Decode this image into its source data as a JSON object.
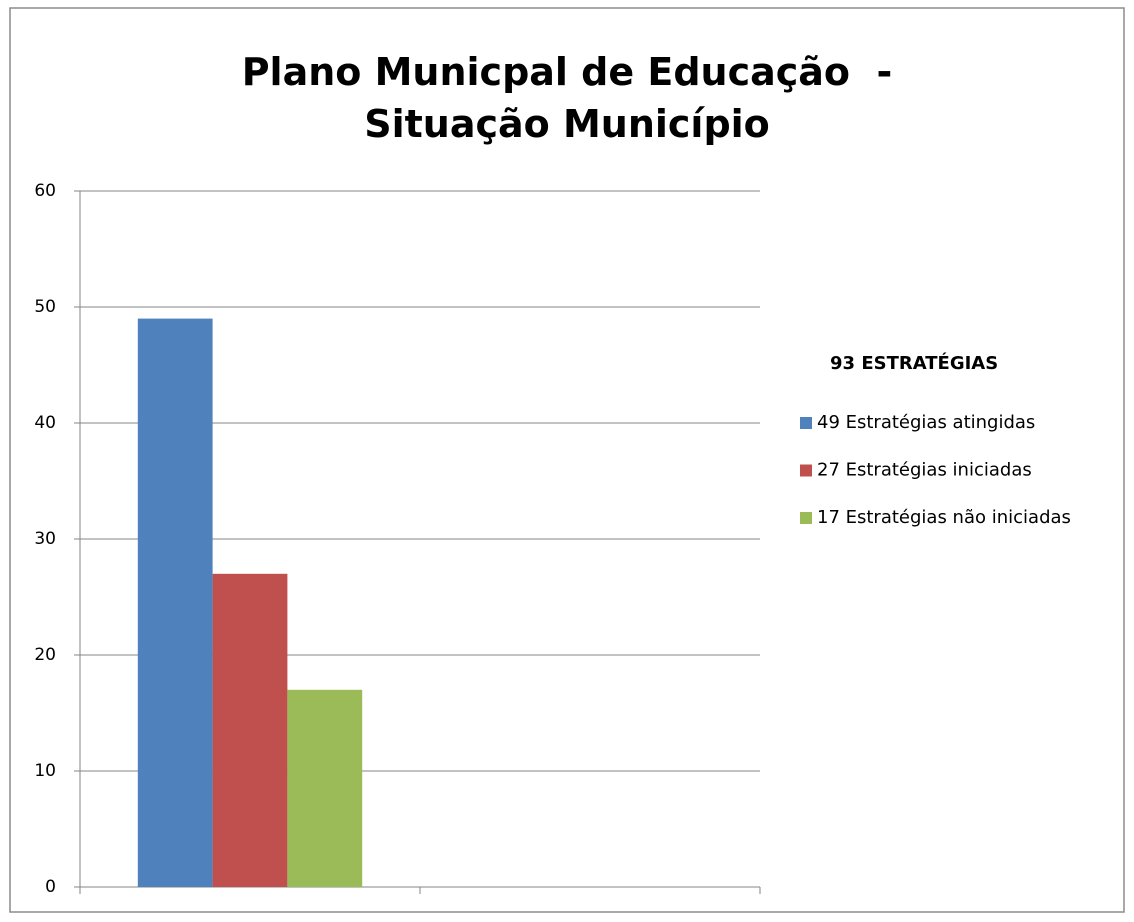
{
  "chart_data": {
    "type": "bar",
    "title": "Plano Municpal de Educação  - Situação Município",
    "legend_title": "93 ESTRATÉGIAS",
    "categories": [
      null,
      null
    ],
    "series": [
      {
        "name": "49 Estratégias atingidas",
        "color": "#4f81bd",
        "values": [
          49,
          null
        ]
      },
      {
        "name": "27 Estratégias iniciadas",
        "color": "#c0504d",
        "values": [
          27,
          null
        ]
      },
      {
        "name": "17 Estratégias não iniciadas",
        "color": "#9bbb59",
        "values": [
          17,
          null
        ]
      }
    ],
    "ylim": [
      0,
      60
    ],
    "yticks": [
      0,
      10,
      20,
      30,
      40,
      50,
      60
    ],
    "grid": true,
    "legend": "right"
  }
}
